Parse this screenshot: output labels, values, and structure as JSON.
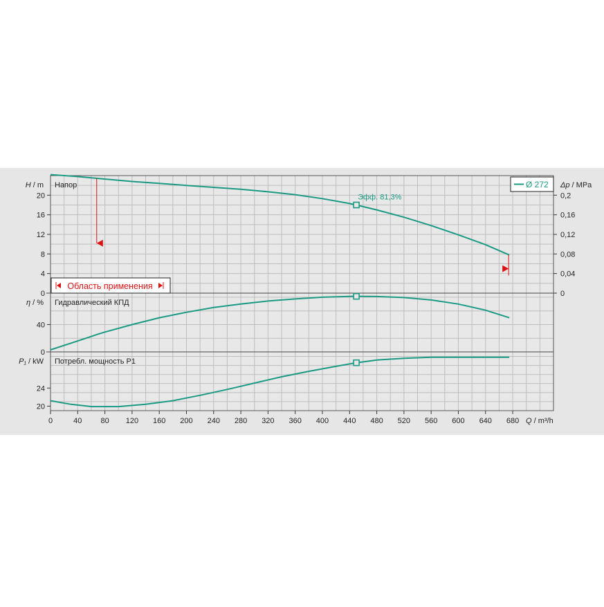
{
  "chart_data": [
    {
      "type": "line",
      "name_label": "Напор",
      "ylabel": "H",
      "yunit": "m",
      "ylabel_right": "Δp",
      "yunit_right": "MPa",
      "ylim": [
        0,
        24
      ],
      "yticks": [
        0,
        4,
        8,
        12,
        16,
        20
      ],
      "ylim_right": [
        0,
        0.24
      ],
      "yticks_right": [
        "0",
        "0,04",
        "0,08",
        "0,12",
        "0,16",
        "0,2"
      ],
      "yticks_right_values": [
        0,
        0.04,
        0.08,
        0.12,
        0.16,
        0.2
      ],
      "legend": "Ø 272",
      "annotation": "Эфф.  81,3%",
      "operating_range_label": "Область применения",
      "operating_range": [
        70,
        675
      ],
      "marker": {
        "x": 450,
        "y": 18.0
      },
      "series": [
        {
          "x": [
            0,
            40,
            80,
            120,
            160,
            200,
            240,
            280,
            320,
            360,
            400,
            440,
            450,
            480,
            520,
            560,
            600,
            640,
            675
          ],
          "y": [
            24.2,
            23.8,
            23.3,
            22.8,
            22.4,
            22.0,
            21.6,
            21.2,
            20.7,
            20.1,
            19.3,
            18.3,
            18.0,
            17.0,
            15.5,
            13.8,
            11.9,
            9.9,
            7.8
          ]
        }
      ]
    },
    {
      "type": "line",
      "name_label": "Гидравлический КПД",
      "ylabel": "η",
      "yunit": "%",
      "ylim": [
        0,
        86
      ],
      "yticks": [
        0,
        40
      ],
      "marker": {
        "x": 450,
        "y": 81.3
      },
      "series": [
        {
          "x": [
            0,
            40,
            70,
            80,
            120,
            160,
            200,
            240,
            280,
            320,
            360,
            400,
            440,
            450,
            480,
            520,
            560,
            600,
            640,
            675
          ],
          "y": [
            3,
            16,
            26,
            29,
            40,
            50,
            58,
            65,
            70,
            74.5,
            77.5,
            80,
            81.2,
            81.3,
            81,
            79.5,
            76,
            70,
            61,
            50
          ]
        }
      ]
    },
    {
      "type": "line",
      "name_label": "Потребл. мощность P1",
      "ylabel": "P₁",
      "yunit": "kW",
      "ylim": [
        19,
        32
      ],
      "yticks": [
        20,
        24
      ],
      "marker": {
        "x": 450,
        "y": 29.6
      },
      "series": [
        {
          "x": [
            0,
            30,
            60,
            100,
            140,
            180,
            220,
            260,
            300,
            340,
            380,
            420,
            450,
            480,
            520,
            560,
            600,
            640,
            675
          ],
          "y": [
            21.2,
            20.4,
            19.9,
            19.9,
            20.4,
            21.2,
            22.4,
            23.7,
            25.1,
            26.5,
            27.7,
            28.8,
            29.6,
            30.2,
            30.6,
            30.8,
            30.8,
            30.8,
            30.8
          ]
        }
      ]
    }
  ],
  "x_axis": {
    "label": "Q",
    "unit": "m³/h",
    "xlim": [
      0,
      740
    ],
    "ticks": [
      0,
      40,
      80,
      120,
      160,
      200,
      240,
      280,
      320,
      360,
      400,
      440,
      480,
      520,
      560,
      600,
      640,
      680
    ]
  },
  "colors": {
    "curve": "#1a9a84",
    "range_marker": "#dd1111",
    "panel_bg": "#e6e6e6",
    "plot_bg": "#e8e8e8",
    "grid": "#bdbdbd"
  }
}
